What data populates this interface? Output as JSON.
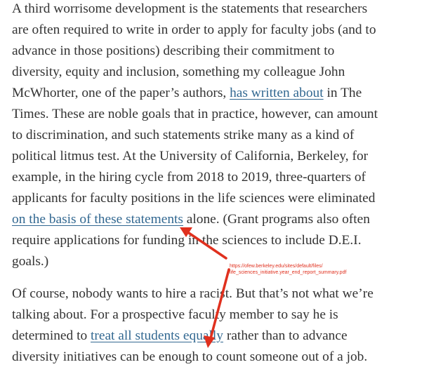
{
  "paragraph1": {
    "l1": "A third worrisome development is the statements that researchers",
    "l2": "are often required to write in order to apply for faculty jobs (and to",
    "l3": "advance in those positions) describing their commitment to",
    "l4": "diversity, equity and inclusion, something my colleague John",
    "l5_pre": "McWhorter, one of the paper’s authors, ",
    "l5_link": "has written about",
    "l5_post": " in The",
    "l6": "Times. These are noble goals that in practice, however, can amount",
    "l7": "to discrimination, and such statements strike many as a kind of",
    "l8": "political litmus test. At the University of California, Berkeley, for",
    "l9": "example, in the hiring cycle from 2018 to 2019, three-quarters of",
    "l10": "applicants for faculty positions in the life sciences were eliminated",
    "l11_link": "on the basis of these statements",
    "l11_post": " alone. (Grant programs also often",
    "l12": "require applications for funding in the sciences to include D.E.I.",
    "l13": "goals.)"
  },
  "annotation": {
    "url_line1": "https://ofew.berkeley.edu/sites/default/files/",
    "url_line2": "life_sciences_initiative.year_end_report_summary.pdf",
    "color": "#e0301e"
  },
  "paragraph2": {
    "l1": "Of course, nobody wants to hire a racist. But that’s not what we’re",
    "l2": "talking about. For a prospective faculty member to say he is",
    "l3_pre": "determined to ",
    "l3_link": "treat all students equally",
    "l3_post": " rather than to advance",
    "l4": "diversity initiatives can be enough to count someone out of a job."
  },
  "link_color": "#326891"
}
